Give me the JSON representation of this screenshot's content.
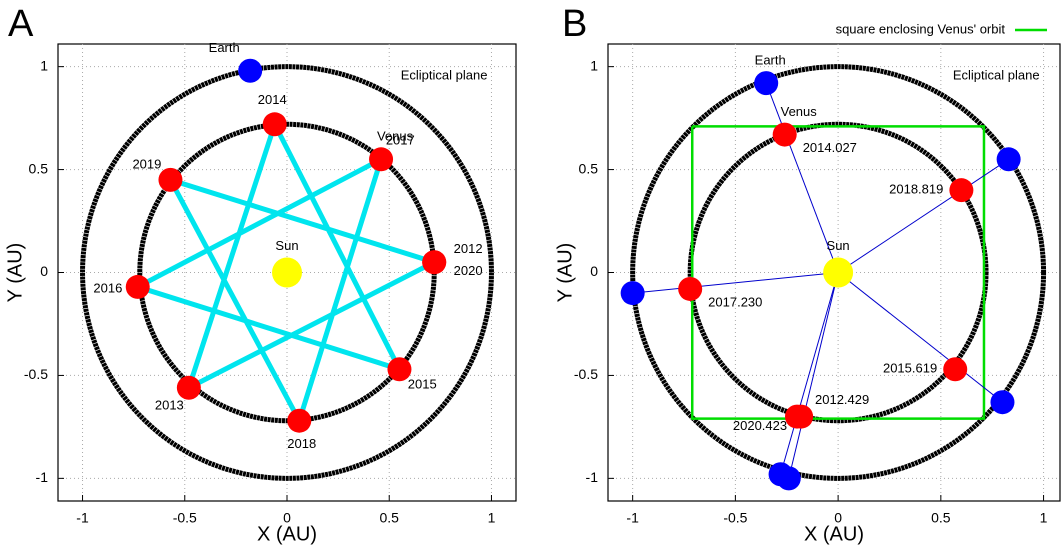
{
  "chart_data": [
    {
      "type": "scatter",
      "panel_label": "A",
      "xlabel": "X (AU)",
      "ylabel": "Y (AU)",
      "xlim": [
        -1.12,
        1.12
      ],
      "ylim": [
        -1.11,
        1.11
      ],
      "xticks": [
        -1,
        -0.5,
        0,
        0.5,
        1
      ],
      "yticks": [
        -1,
        -0.5,
        0,
        0.5,
        1
      ],
      "grid": true,
      "annotation": "Ecliptical plane",
      "orbits": [
        {
          "radius": 1,
          "color": "#000000"
        },
        {
          "radius": 0.72,
          "color": "#000000"
        }
      ],
      "sun": {
        "name": "Sun",
        "x": 0,
        "y": 0,
        "color": "#ffff00"
      },
      "series": [
        {
          "name": "Earth",
          "color": "#0000ff",
          "x": [
            -0.18
          ],
          "y": [
            0.98
          ]
        },
        {
          "name": "Venus",
          "color": "#ff0000",
          "line_color": "#00e5ee",
          "x": [
            0.72,
            -0.48,
            -0.06,
            0.55,
            -0.73,
            0.46,
            0.06,
            -0.57,
            0.72
          ],
          "y": [
            0.05,
            -0.56,
            0.72,
            -0.47,
            -0.07,
            0.55,
            -0.72,
            0.45,
            0.05
          ],
          "labels": [
            "2012",
            "2013",
            "2014",
            "2015",
            "2016",
            "2017",
            "2018",
            "2019",
            "2020"
          ]
        }
      ]
    },
    {
      "type": "scatter",
      "panel_label": "B",
      "xlabel": "X (AU)",
      "ylabel": "Y (AU)",
      "xlim": [
        -1.12,
        1.08
      ],
      "ylim": [
        -1.11,
        1.11
      ],
      "xticks": [
        -1,
        -0.5,
        0,
        0.5,
        1
      ],
      "yticks": [
        -1,
        -0.5,
        0,
        0.5,
        1
      ],
      "grid": true,
      "annotation": "Ecliptical plane",
      "orbits": [
        {
          "radius": 1,
          "color": "#000000"
        },
        {
          "radius": 0.72,
          "color": "#000000"
        }
      ],
      "sun": {
        "name": "Sun",
        "x": 0,
        "y": 0,
        "color": "#ffff00"
      },
      "square": {
        "name": "square enclosing Venus' orbit",
        "color": "#00dd00",
        "x": [
          -0.71,
          0.71,
          0.71,
          -0.71,
          -0.71
        ],
        "y": [
          0.71,
          0.71,
          -0.71,
          -0.71,
          0.71
        ]
      },
      "ray_color": "#0000cc",
      "series": [
        {
          "name": "Earth",
          "color": "#0000ff",
          "x": [
            -0.35,
            0.83,
            -1.0,
            0.8,
            -0.28,
            -0.24
          ],
          "y": [
            0.92,
            0.55,
            -0.1,
            -0.63,
            -0.98,
            -1.0
          ]
        },
        {
          "name": "Venus",
          "color": "#ff0000",
          "x": [
            -0.26,
            0.6,
            -0.72,
            0.57,
            -0.2,
            -0.18
          ],
          "y": [
            0.67,
            0.4,
            -0.08,
            -0.47,
            -0.7,
            -0.7
          ],
          "labels": [
            "2014.027",
            "2018.819",
            "2017.230",
            "2015.619",
            "2012.429",
            "2020.423"
          ]
        }
      ]
    }
  ]
}
